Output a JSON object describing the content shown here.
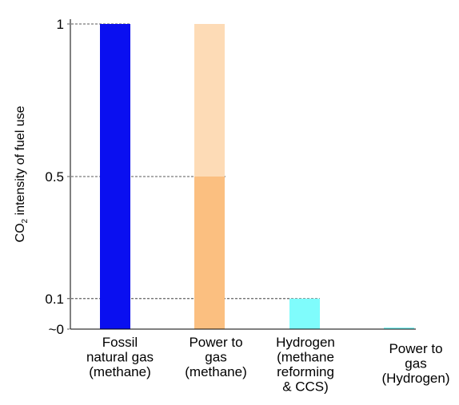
{
  "chart_data": {
    "type": "bar",
    "ylabel": {
      "main": "CO",
      "sub": "2",
      "rest": " intensity of fuel use"
    },
    "y_ticks": [
      {
        "value": 1,
        "label": "1"
      },
      {
        "value": 0.5,
        "label": "0.5"
      },
      {
        "value": 0.1,
        "label": "0.1"
      },
      {
        "value": 0.0,
        "label": "~0"
      }
    ],
    "ylim": [
      0,
      1
    ],
    "grid": "dashed reference lines at tick values",
    "categories": [
      {
        "lines": [
          "Fossil",
          "natural gas",
          "(methane)"
        ]
      },
      {
        "lines": [
          "Power to",
          "gas",
          "(methane)"
        ]
      },
      {
        "lines": [
          "Hydrogen",
          "(methane",
          "reforming",
          "& CCS)"
        ]
      },
      {
        "lines": [
          "Power to",
          "gas",
          "(Hydrogen)"
        ]
      }
    ],
    "bars": [
      {
        "segments": [
          {
            "from": 0,
            "to": 1,
            "color": "#0a0ff0"
          }
        ]
      },
      {
        "segments": [
          {
            "from": 0,
            "to": 0.5,
            "color": "#fbbf80"
          },
          {
            "from": 0.5,
            "to": 1,
            "color": "#fddbb6"
          }
        ]
      },
      {
        "segments": [
          {
            "from": 0,
            "to": 0.1,
            "color": "#7ffcfc"
          }
        ]
      },
      {
        "segments": [
          {
            "from": 0,
            "to": 0.005,
            "color": "#7ffcfc"
          }
        ]
      }
    ]
  }
}
